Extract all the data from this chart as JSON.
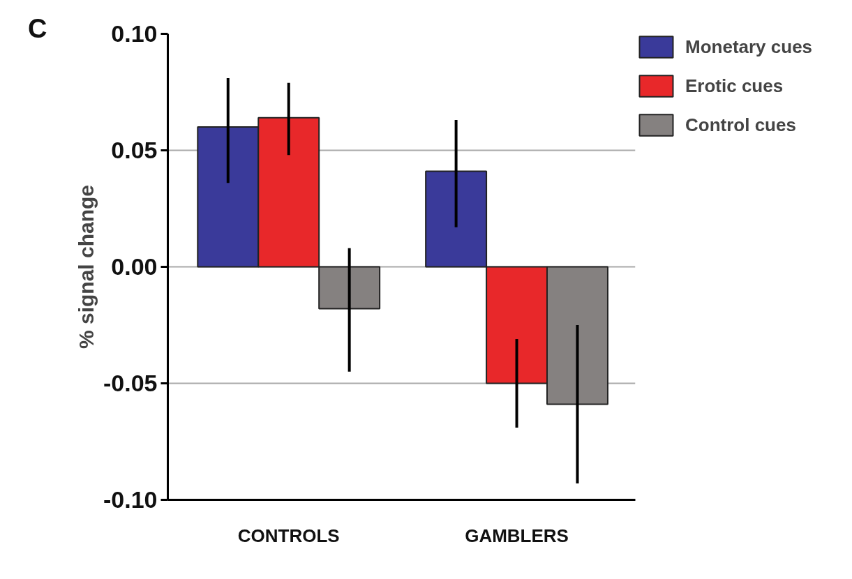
{
  "chart_data": {
    "type": "bar",
    "ylabel": "% signal change",
    "categories": [
      "CONTROLS",
      "GAMBLERS"
    ],
    "series": [
      {
        "name": "Monetary cues",
        "color": "#3a3a9a",
        "values": [
          0.06,
          0.041
        ],
        "errors": [
          [
            0.036,
            0.081
          ],
          [
            0.017,
            0.063
          ]
        ]
      },
      {
        "name": "Erotic cues",
        "color": "#e8282a",
        "values": [
          0.064,
          -0.05
        ],
        "errors": [
          [
            0.048,
            0.079
          ],
          [
            -0.069,
            -0.031
          ]
        ]
      },
      {
        "name": "Control cues",
        "color": "#858180",
        "values": [
          -0.018,
          -0.059
        ],
        "errors": [
          [
            -0.045,
            0.008
          ],
          [
            -0.093,
            -0.025
          ]
        ]
      }
    ],
    "ylim": [
      -0.1,
      0.1
    ],
    "yticks": [
      {
        "value": -0.1,
        "label": "-0.10"
      },
      {
        "value": -0.05,
        "label": "-0.05"
      },
      {
        "value": 0,
        "label": "0.00"
      },
      {
        "value": 0.05,
        "label": "0.05"
      },
      {
        "value": 0.1,
        "label": "0.10"
      }
    ],
    "grid": "y",
    "legend": "top right",
    "annotations": [
      "C"
    ]
  }
}
